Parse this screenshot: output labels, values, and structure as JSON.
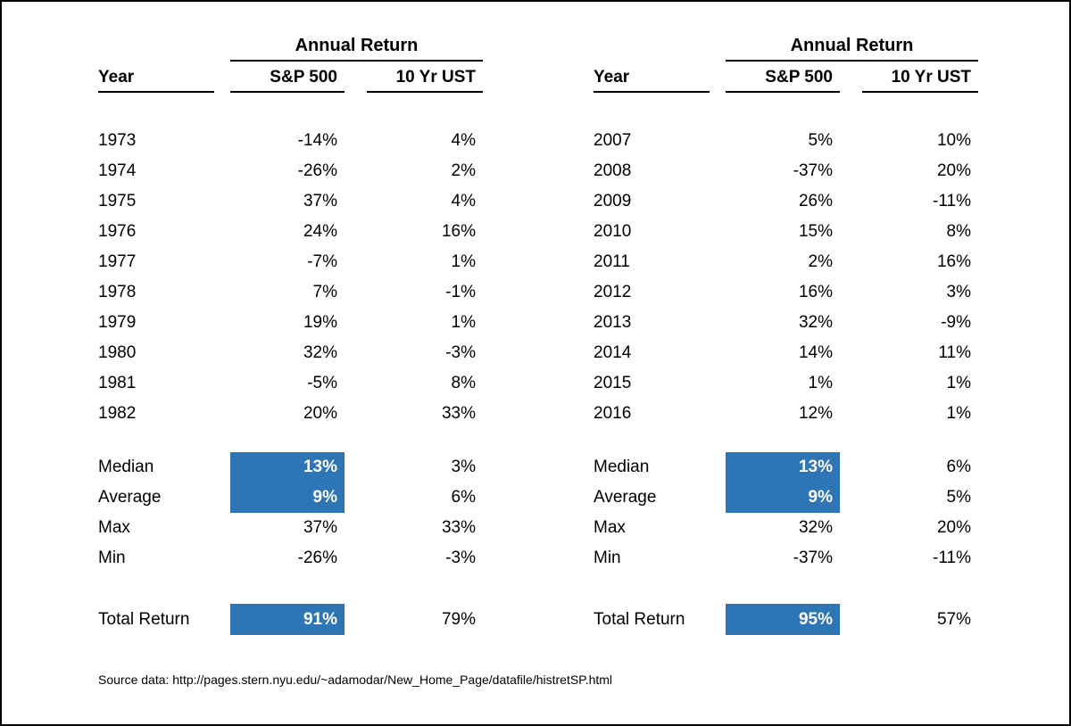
{
  "colors": {
    "highlight": "#2e75b6",
    "highlight_text": "#ffffff",
    "text": "#000000",
    "page_border": "#000000"
  },
  "footer": {
    "source_note": "Source data: http://pages.stern.nyu.edu/~adamodar/New_Home_Page/datafile/histretSP.html"
  },
  "chart_data": [
    {
      "type": "table",
      "group_header": "Annual Return",
      "columns": {
        "year": "Year",
        "sp500": "S&P 500",
        "ust": "10 Yr UST"
      },
      "rows": [
        {
          "year": "1973",
          "sp500": "-14%",
          "ust": "4%"
        },
        {
          "year": "1974",
          "sp500": "-26%",
          "ust": "2%"
        },
        {
          "year": "1975",
          "sp500": "37%",
          "ust": "4%"
        },
        {
          "year": "1976",
          "sp500": "24%",
          "ust": "16%"
        },
        {
          "year": "1977",
          "sp500": "-7%",
          "ust": "1%"
        },
        {
          "year": "1978",
          "sp500": "7%",
          "ust": "-1%"
        },
        {
          "year": "1979",
          "sp500": "19%",
          "ust": "1%"
        },
        {
          "year": "1980",
          "sp500": "32%",
          "ust": "-3%"
        },
        {
          "year": "1981",
          "sp500": "-5%",
          "ust": "8%"
        },
        {
          "year": "1982",
          "sp500": "20%",
          "ust": "33%"
        }
      ],
      "summary": {
        "median": {
          "label": "Median",
          "sp500": "13%",
          "ust": "3%"
        },
        "average": {
          "label": "Average",
          "sp500": "9%",
          "ust": "6%"
        },
        "max": {
          "label": "Max",
          "sp500": "37%",
          "ust": "33%"
        },
        "min": {
          "label": "Min",
          "sp500": "-26%",
          "ust": "-3%"
        },
        "total": {
          "label": "Total Return",
          "sp500": "91%",
          "ust": "79%"
        }
      },
      "highlighted_cells": [
        "summary.median.sp500",
        "summary.average.sp500",
        "summary.total.sp500"
      ]
    },
    {
      "type": "table",
      "group_header": "Annual Return",
      "columns": {
        "year": "Year",
        "sp500": "S&P 500",
        "ust": "10 Yr UST"
      },
      "rows": [
        {
          "year": "2007",
          "sp500": "5%",
          "ust": "10%"
        },
        {
          "year": "2008",
          "sp500": "-37%",
          "ust": "20%"
        },
        {
          "year": "2009",
          "sp500": "26%",
          "ust": "-11%"
        },
        {
          "year": "2010",
          "sp500": "15%",
          "ust": "8%"
        },
        {
          "year": "2011",
          "sp500": "2%",
          "ust": "16%"
        },
        {
          "year": "2012",
          "sp500": "16%",
          "ust": "3%"
        },
        {
          "year": "2013",
          "sp500": "32%",
          "ust": "-9%"
        },
        {
          "year": "2014",
          "sp500": "14%",
          "ust": "11%"
        },
        {
          "year": "2015",
          "sp500": "1%",
          "ust": "1%"
        },
        {
          "year": "2016",
          "sp500": "12%",
          "ust": "1%"
        }
      ],
      "summary": {
        "median": {
          "label": "Median",
          "sp500": "13%",
          "ust": "6%"
        },
        "average": {
          "label": "Average",
          "sp500": "9%",
          "ust": "5%"
        },
        "max": {
          "label": "Max",
          "sp500": "32%",
          "ust": "20%"
        },
        "min": {
          "label": "Min",
          "sp500": "-37%",
          "ust": "-11%"
        },
        "total": {
          "label": "Total Return",
          "sp500": "95%",
          "ust": "57%"
        }
      },
      "highlighted_cells": [
        "summary.median.sp500",
        "summary.average.sp500",
        "summary.total.sp500"
      ]
    }
  ]
}
